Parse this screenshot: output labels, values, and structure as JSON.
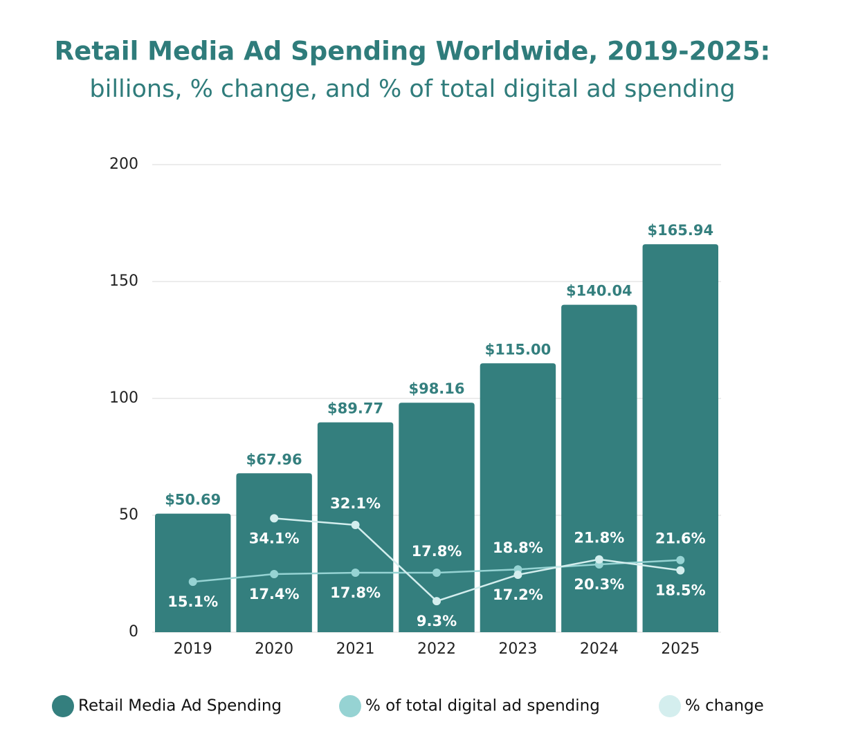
{
  "chart_data": {
    "type": "bar",
    "title": "Retail Media Ad Spending Worldwide, 2019-2025:",
    "subtitle": "billions, % change, and % of total digital ad spending",
    "categories": [
      "2019",
      "2020",
      "2021",
      "2022",
      "2023",
      "2024",
      "2025"
    ],
    "ylim": [
      0,
      200
    ],
    "yticks": [
      0,
      50,
      100,
      150,
      200
    ],
    "grid": true,
    "y2lim": [
      0,
      140
    ],
    "series": [
      {
        "name": "Retail Media Ad Spending",
        "type": "bar",
        "color": "#347f7e",
        "values": [
          50.69,
          67.96,
          89.77,
          98.16,
          115.0,
          140.04,
          165.94
        ],
        "value_labels": [
          "$50.69",
          "$67.96",
          "$89.77",
          "$98.16",
          "$115.00",
          "$140.04",
          "$165.94"
        ]
      },
      {
        "name": "% of total digital ad spending",
        "type": "line",
        "axis": "y2",
        "color": "#96d3d3",
        "values": [
          15.1,
          17.4,
          17.8,
          17.8,
          18.8,
          20.3,
          21.6
        ],
        "value_labels": [
          "15.1%",
          "17.4%",
          "17.8%",
          "17.8%",
          "18.8%",
          "20.3%",
          "21.6%"
        ]
      },
      {
        "name": "% change",
        "type": "line",
        "axis": "y2",
        "color": "#d4eeee",
        "values": [
          null,
          34.1,
          32.1,
          9.3,
          17.2,
          21.8,
          18.5
        ],
        "value_labels": [
          null,
          "34.1%",
          "32.1%",
          "9.3%",
          "17.2%",
          "21.8%",
          "18.5%"
        ]
      }
    ]
  }
}
